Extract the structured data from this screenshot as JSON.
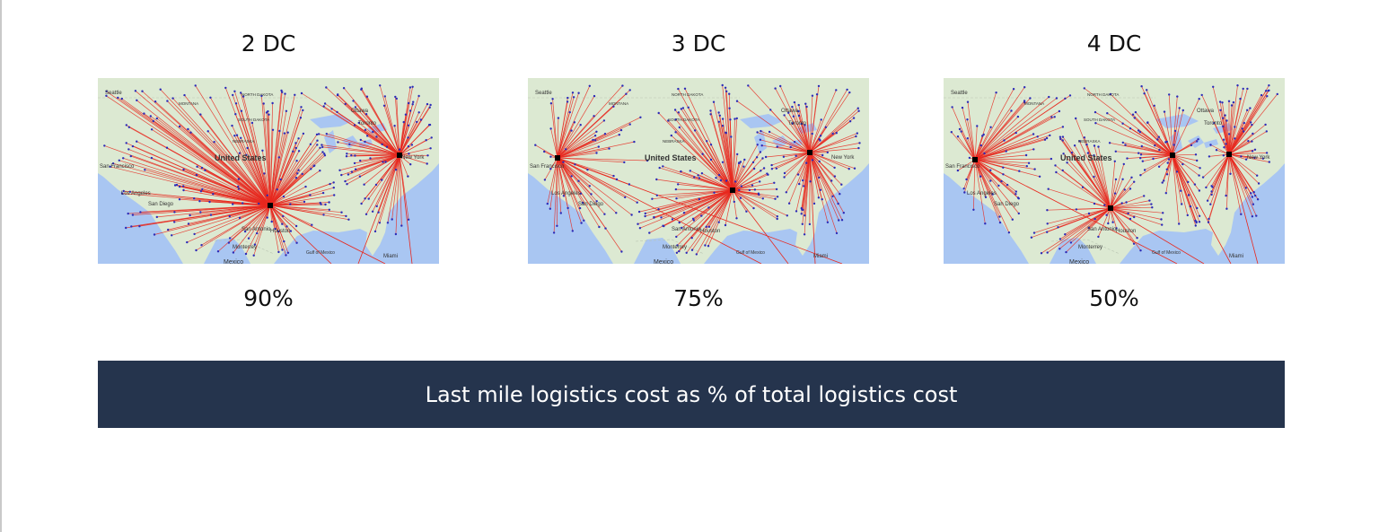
{
  "panels": [
    {
      "title": "2 DC",
      "percent": "90%",
      "hubs": [
        [
          192,
          142
        ],
        [
          336,
          86
        ]
      ],
      "labels": {
        "seattle": "Seattle",
        "montana": "MONTANA",
        "north_dakota": "NORTH DAKOTA",
        "south_dakota": "SOUTH DAKOTA",
        "nebraska": "NEBRASKA",
        "us": "United States",
        "sf": "San Francisco",
        "la": "Los Angeles",
        "sd": "San Diego",
        "sa": "San Antonio",
        "houston": "Houston",
        "gulf": "Gulf of Mexico",
        "monterrey": "Monterrey",
        "mexico": "Mexico",
        "ottawa": "Ottawa",
        "toronto": "Toronto",
        "ny": "New York",
        "miami": "Miami"
      }
    },
    {
      "title": "3 DC",
      "percent": "75%",
      "hubs": [
        [
          33,
          89
        ],
        [
          228,
          125
        ],
        [
          314,
          83
        ]
      ],
      "labels": {
        "seattle": "Seattle",
        "montana": "MONTANA",
        "north_dakota": "NORTH DAKOTA",
        "south_dakota": "SOUTH DAKOTA",
        "nebraska": "NEBRASKA",
        "us": "United States",
        "sf": "San Francisco",
        "la": "Los Angeles",
        "sd": "San Diego",
        "sa": "San Antonio",
        "houston": "Houston",
        "gulf": "Gulf of Mexico",
        "monterrey": "Monterrey",
        "mexico": "Mexico",
        "ottawa": "Ottawa",
        "toronto": "Toronto",
        "ny": "New York",
        "miami": "Miami"
      }
    },
    {
      "title": "4 DC",
      "percent": "50%",
      "hubs": [
        [
          35,
          91
        ],
        [
          186,
          145
        ],
        [
          255,
          86
        ],
        [
          318,
          85
        ]
      ],
      "labels": {
        "seattle": "Seattle",
        "montana": "MONTANA",
        "north_dakota": "NORTH DAKOTA",
        "south_dakota": "SOUTH DAKOTA",
        "nebraska": "NEBRASKA",
        "us": "United States",
        "sf": "San Francisco",
        "la": "Los Angeles",
        "sd": "San Diego",
        "sa": "San Antonio",
        "houston": "Houston",
        "gulf": "Gulf of Mexico",
        "monterrey": "Monterrey",
        "mexico": "Mexico",
        "ottawa": "Ottawa",
        "toronto": "Toronto",
        "ny": "New York",
        "miami": "Miami"
      }
    }
  ],
  "footer": {
    "label": "Last mile logistics cost as % of total logistics cost",
    "background_color": "#25344d"
  },
  "colors": {
    "route": "#e8281e",
    "customer_dot": "#2b2bb8",
    "land": "#dce9d2",
    "water": "#a9c6f2",
    "hub": "#000000"
  }
}
